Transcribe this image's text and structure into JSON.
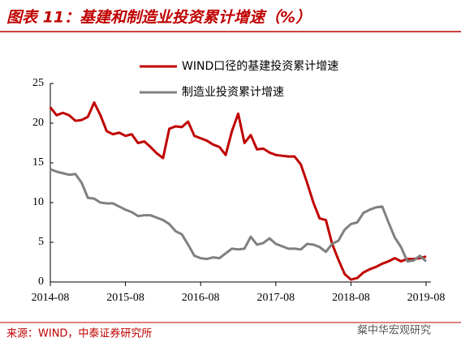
{
  "chart_data": {
    "type": "line",
    "title": "图表 11：基建和制造业投资累计增速（%）",
    "source": "来源：WIND，中泰证券研究所",
    "watermark": "粲中华宏观研究",
    "categories": [
      "2014-08",
      null,
      null,
      null,
      null,
      null,
      null,
      null,
      null,
      null,
      null,
      null,
      "2015-08",
      null,
      null,
      null,
      null,
      null,
      null,
      null,
      null,
      null,
      null,
      null,
      "2016-08",
      null,
      null,
      null,
      null,
      null,
      null,
      null,
      null,
      null,
      null,
      null,
      "2017-08",
      null,
      null,
      null,
      null,
      null,
      null,
      null,
      null,
      null,
      null,
      null,
      "2018-08",
      null,
      null,
      null,
      null,
      null,
      null,
      null,
      null,
      null,
      null,
      null,
      "2019-08"
    ],
    "series": [
      {
        "name": "WIND口径的基建投资累计增速",
        "color": "#c00000",
        "values": [
          22,
          21,
          21.3,
          21,
          20.3,
          20.4,
          20.8,
          22.6,
          21,
          19,
          18.6,
          18.8,
          18.4,
          18.6,
          17.5,
          17.7,
          17,
          16.2,
          15.6,
          19.3,
          19.6,
          19.5,
          20.2,
          18.4,
          18.1,
          17.8,
          17.3,
          17,
          16,
          19,
          21.2,
          17.5,
          18.5,
          16.7,
          16.8,
          16.3,
          16,
          15.9,
          15.8,
          15.8,
          14.8,
          12.5,
          10,
          8,
          7.8,
          4.8,
          2.8,
          1,
          0.3,
          0.5,
          1.2,
          1.6,
          1.9,
          2.3,
          2.6,
          3,
          2.6,
          2.9,
          2.9,
          3,
          3.2
        ]
      },
      {
        "name": "制造业投资累计增速",
        "color": "#808080",
        "values": [
          14.2,
          13.9,
          13.7,
          13.5,
          13.6,
          12.5,
          10.6,
          10.5,
          10,
          9.9,
          9.9,
          9.5,
          9.1,
          8.8,
          8.3,
          8.4,
          8.4,
          8.1,
          7.8,
          7.3,
          6.4,
          6,
          4.7,
          3.3,
          3,
          2.9,
          3.1,
          3,
          3.6,
          4.2,
          4.1,
          4.2,
          5.7,
          4.7,
          4.9,
          5.5,
          4.8,
          4.5,
          4.2,
          4.2,
          4.1,
          4.8,
          4.7,
          4.4,
          3.8,
          4.8,
          5.2,
          6.6,
          7.3,
          7.5,
          8.7,
          9.1,
          9.4,
          9.5,
          7.5,
          5.6,
          4.4,
          2.6,
          2.7,
          3.3,
          2.6
        ]
      }
    ],
    "ylim": [
      0,
      25
    ],
    "yticks": [
      0,
      5,
      10,
      15,
      20,
      25
    ],
    "grid": false,
    "legend": "top"
  }
}
